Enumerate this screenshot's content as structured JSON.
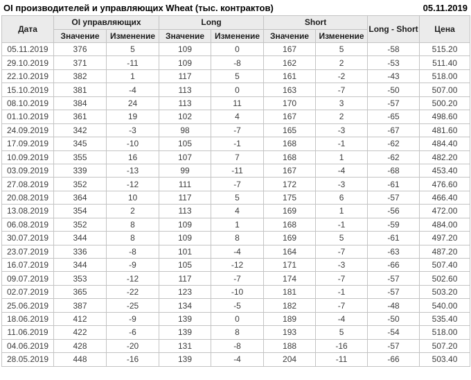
{
  "header": {
    "title": "OI производителей и управляющих Wheat (тыс. контрактов)",
    "report_date": "05.11.2019"
  },
  "table": {
    "columns": {
      "date": "Дата",
      "oi_group": "OI управляющих",
      "long_group": "Long",
      "short_group": "Short",
      "value": "Значение",
      "change": "Изменение",
      "long_short": "Long - Short",
      "price": "Цена"
    },
    "colors": {
      "up": "#008000",
      "down": "#cc0000",
      "neutral": "#3c3c3c",
      "header_bg": "#ebebeb",
      "border": "#c3c3c3"
    },
    "rows": [
      {
        "date": "05.11.2019",
        "oi": "376",
        "oi_chg": "5",
        "oi_chg_dir": "up",
        "long": "109",
        "long_chg": "0",
        "long_chg_dir": "neutral",
        "short": "167",
        "short_chg": "5",
        "short_chg_dir": "up",
        "long_short": "-58",
        "price": "515.20"
      },
      {
        "date": "29.10.2019",
        "oi": "371",
        "oi_chg": "-11",
        "oi_chg_dir": "down",
        "long": "109",
        "long_chg": "-8",
        "long_chg_dir": "down",
        "short": "162",
        "short_chg": "2",
        "short_chg_dir": "up",
        "long_short": "-53",
        "price": "511.40"
      },
      {
        "date": "22.10.2019",
        "oi": "382",
        "oi_chg": "1",
        "oi_chg_dir": "up",
        "long": "117",
        "long_chg": "5",
        "long_chg_dir": "up",
        "short": "161",
        "short_chg": "-2",
        "short_chg_dir": "down",
        "long_short": "-43",
        "price": "518.00"
      },
      {
        "date": "15.10.2019",
        "oi": "381",
        "oi_chg": "-4",
        "oi_chg_dir": "down",
        "long": "113",
        "long_chg": "0",
        "long_chg_dir": "down",
        "short": "163",
        "short_chg": "-7",
        "short_chg_dir": "down",
        "long_short": "-50",
        "price": "507.00"
      },
      {
        "date": "08.10.2019",
        "oi": "384",
        "oi_chg": "24",
        "oi_chg_dir": "up",
        "long": "113",
        "long_chg": "11",
        "long_chg_dir": "up",
        "short": "170",
        "short_chg": "3",
        "short_chg_dir": "up",
        "long_short": "-57",
        "price": "500.20"
      },
      {
        "date": "01.10.2019",
        "oi": "361",
        "oi_chg": "19",
        "oi_chg_dir": "up",
        "long": "102",
        "long_chg": "4",
        "long_chg_dir": "up",
        "short": "167",
        "short_chg": "2",
        "short_chg_dir": "up",
        "long_short": "-65",
        "price": "498.60"
      },
      {
        "date": "24.09.2019",
        "oi": "342",
        "oi_chg": "-3",
        "oi_chg_dir": "down",
        "long": "98",
        "long_chg": "-7",
        "long_chg_dir": "down",
        "short": "165",
        "short_chg": "-3",
        "short_chg_dir": "down",
        "long_short": "-67",
        "price": "481.60"
      },
      {
        "date": "17.09.2019",
        "oi": "345",
        "oi_chg": "-10",
        "oi_chg_dir": "down",
        "long": "105",
        "long_chg": "-1",
        "long_chg_dir": "down",
        "short": "168",
        "short_chg": "-1",
        "short_chg_dir": "down",
        "long_short": "-62",
        "price": "484.40"
      },
      {
        "date": "10.09.2019",
        "oi": "355",
        "oi_chg": "16",
        "oi_chg_dir": "up",
        "long": "107",
        "long_chg": "7",
        "long_chg_dir": "up",
        "short": "168",
        "short_chg": "1",
        "short_chg_dir": "up",
        "long_short": "-62",
        "price": "482.20"
      },
      {
        "date": "03.09.2019",
        "oi": "339",
        "oi_chg": "-13",
        "oi_chg_dir": "down",
        "long": "99",
        "long_chg": "-11",
        "long_chg_dir": "down",
        "short": "167",
        "short_chg": "-4",
        "short_chg_dir": "down",
        "long_short": "-68",
        "price": "453.40"
      },
      {
        "date": "27.08.2019",
        "oi": "352",
        "oi_chg": "-12",
        "oi_chg_dir": "down",
        "long": "111",
        "long_chg": "-7",
        "long_chg_dir": "down",
        "short": "172",
        "short_chg": "-3",
        "short_chg_dir": "down",
        "long_short": "-61",
        "price": "476.60"
      },
      {
        "date": "20.08.2019",
        "oi": "364",
        "oi_chg": "10",
        "oi_chg_dir": "up",
        "long": "117",
        "long_chg": "5",
        "long_chg_dir": "up",
        "short": "175",
        "short_chg": "6",
        "short_chg_dir": "up",
        "long_short": "-57",
        "price": "466.40"
      },
      {
        "date": "13.08.2019",
        "oi": "354",
        "oi_chg": "2",
        "oi_chg_dir": "up",
        "long": "113",
        "long_chg": "4",
        "long_chg_dir": "up",
        "short": "169",
        "short_chg": "1",
        "short_chg_dir": "up",
        "long_short": "-56",
        "price": "472.00"
      },
      {
        "date": "06.08.2019",
        "oi": "352",
        "oi_chg": "8",
        "oi_chg_dir": "up",
        "long": "109",
        "long_chg": "1",
        "long_chg_dir": "up",
        "short": "168",
        "short_chg": "-1",
        "short_chg_dir": "down",
        "long_short": "-59",
        "price": "484.00"
      },
      {
        "date": "30.07.2019",
        "oi": "344",
        "oi_chg": "8",
        "oi_chg_dir": "up",
        "long": "109",
        "long_chg": "8",
        "long_chg_dir": "up",
        "short": "169",
        "short_chg": "5",
        "short_chg_dir": "up",
        "long_short": "-61",
        "price": "497.20"
      },
      {
        "date": "23.07.2019",
        "oi": "336",
        "oi_chg": "-8",
        "oi_chg_dir": "down",
        "long": "101",
        "long_chg": "-4",
        "long_chg_dir": "down",
        "short": "164",
        "short_chg": "-7",
        "short_chg_dir": "down",
        "long_short": "-63",
        "price": "487.20"
      },
      {
        "date": "16.07.2019",
        "oi": "344",
        "oi_chg": "-9",
        "oi_chg_dir": "down",
        "long": "105",
        "long_chg": "-12",
        "long_chg_dir": "down",
        "short": "171",
        "short_chg": "-3",
        "short_chg_dir": "down",
        "long_short": "-66",
        "price": "507.40"
      },
      {
        "date": "09.07.2019",
        "oi": "353",
        "oi_chg": "-12",
        "oi_chg_dir": "down",
        "long": "117",
        "long_chg": "-7",
        "long_chg_dir": "down",
        "short": "174",
        "short_chg": "-7",
        "short_chg_dir": "down",
        "long_short": "-57",
        "price": "502.60"
      },
      {
        "date": "02.07.2019",
        "oi": "365",
        "oi_chg": "-22",
        "oi_chg_dir": "down",
        "long": "123",
        "long_chg": "-10",
        "long_chg_dir": "down",
        "short": "181",
        "short_chg": "-1",
        "short_chg_dir": "down",
        "long_short": "-57",
        "price": "503.20"
      },
      {
        "date": "25.06.2019",
        "oi": "387",
        "oi_chg": "-25",
        "oi_chg_dir": "down",
        "long": "134",
        "long_chg": "-5",
        "long_chg_dir": "down",
        "short": "182",
        "short_chg": "-7",
        "short_chg_dir": "down",
        "long_short": "-48",
        "price": "540.00"
      },
      {
        "date": "18.06.2019",
        "oi": "412",
        "oi_chg": "-9",
        "oi_chg_dir": "down",
        "long": "139",
        "long_chg": "0",
        "long_chg_dir": "up",
        "short": "189",
        "short_chg": "-4",
        "short_chg_dir": "down",
        "long_short": "-50",
        "price": "535.40"
      },
      {
        "date": "11.06.2019",
        "oi": "422",
        "oi_chg": "-6",
        "oi_chg_dir": "down",
        "long": "139",
        "long_chg": "8",
        "long_chg_dir": "up",
        "short": "193",
        "short_chg": "5",
        "short_chg_dir": "up",
        "long_short": "-54",
        "price": "518.00"
      },
      {
        "date": "04.06.2019",
        "oi": "428",
        "oi_chg": "-20",
        "oi_chg_dir": "down",
        "long": "131",
        "long_chg": "-8",
        "long_chg_dir": "down",
        "short": "188",
        "short_chg": "-16",
        "short_chg_dir": "down",
        "long_short": "-57",
        "price": "507.20"
      },
      {
        "date": "28.05.2019",
        "oi": "448",
        "oi_chg": "-16",
        "oi_chg_dir": "down",
        "long": "139",
        "long_chg": "-4",
        "long_chg_dir": "down",
        "short": "204",
        "short_chg": "-11",
        "short_chg_dir": "down",
        "long_short": "-66",
        "price": "503.40"
      }
    ]
  }
}
